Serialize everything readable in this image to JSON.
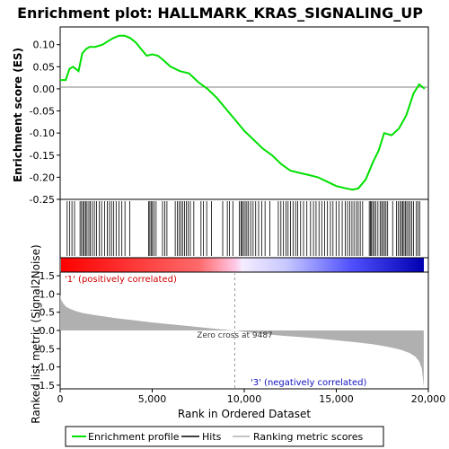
{
  "title": "Enrichment plot: HALLMARK_KRAS_SIGNALING_UP",
  "colors": {
    "es_line": "#00e000",
    "hit_line": "#000000",
    "metric_fill": "#b0b0b0",
    "zero_line": "#808080",
    "pos_label": "#d00000",
    "neg_label": "#1010c0"
  },
  "legend": {
    "items": [
      {
        "label": "Enrichment profile",
        "symbol": "green-line"
      },
      {
        "label": "Hits",
        "symbol": "black-line"
      },
      {
        "label": "Ranking metric scores",
        "symbol": "gray-line"
      }
    ]
  },
  "chart_data": [
    {
      "panel": "enrichment-score",
      "type": "line",
      "ylabel": "Enrichment score (ES)",
      "xlim": [
        0,
        20000
      ],
      "ylim": [
        -0.25,
        0.14
      ],
      "yticks": [
        -0.25,
        -0.2,
        -0.15,
        -0.1,
        -0.05,
        0.0,
        0.05,
        0.1
      ],
      "ytick_labels": [
        "-0.25",
        "-0.20",
        "-0.15",
        "-0.10",
        "-0.05",
        "0.00",
        "0.05",
        "0.10"
      ],
      "grid": false,
      "series": [
        {
          "x": [
            0,
            300,
            500,
            700,
            1000,
            1200,
            1400,
            1600,
            1900,
            2300,
            2600,
            2900,
            3200,
            3500,
            3800,
            4100,
            4400,
            4700,
            5000,
            5300,
            5600,
            6000,
            6500,
            7000,
            7500,
            8000,
            8500,
            9000,
            9500,
            10000,
            10500,
            11000,
            11500,
            12000,
            12500,
            13000,
            13500,
            14000,
            14500,
            15000,
            15500,
            15900,
            16200,
            16600,
            17000,
            17300,
            17600,
            18000,
            18400,
            18800,
            19200,
            19500,
            19800
          ],
          "y": [
            0.02,
            0.02,
            0.045,
            0.05,
            0.04,
            0.08,
            0.09,
            0.095,
            0.095,
            0.1,
            0.108,
            0.115,
            0.12,
            0.12,
            0.115,
            0.105,
            0.09,
            0.075,
            0.078,
            0.075,
            0.065,
            0.05,
            0.04,
            0.035,
            0.015,
            0.0,
            -0.02,
            -0.045,
            -0.07,
            -0.095,
            -0.115,
            -0.135,
            -0.15,
            -0.17,
            -0.185,
            -0.19,
            -0.195,
            -0.2,
            -0.21,
            -0.22,
            -0.225,
            -0.228,
            -0.225,
            -0.205,
            -0.165,
            -0.14,
            -0.1,
            -0.105,
            -0.09,
            -0.06,
            -0.01,
            0.01,
            0.0
          ]
        }
      ]
    },
    {
      "panel": "hits",
      "type": "scatter",
      "description_of_marks": "vertical tick marks at ranks of gene-set members",
      "hit_ranks": [
        380,
        520,
        640,
        780,
        1080,
        1160,
        1240,
        1310,
        1390,
        1460,
        1560,
        1640,
        1750,
        1860,
        1980,
        2130,
        2250,
        2410,
        2560,
        2680,
        2790,
        2910,
        3040,
        3200,
        3350,
        3520,
        3780,
        4800,
        4870,
        4940,
        5010,
        5100,
        5210,
        5560,
        5680,
        5800,
        6250,
        6370,
        6460,
        6560,
        6650,
        6760,
        6850,
        6960,
        7070,
        7260,
        7650,
        7780,
        7960,
        8220,
        8830,
        9080,
        9200,
        9380,
        9730,
        9820,
        9880,
        9960,
        10050,
        10140,
        10230,
        10350,
        10480,
        10620,
        10780,
        10950,
        11130,
        11390,
        11850,
        11990,
        12130,
        12270,
        12380,
        12510,
        12650,
        12790,
        12900,
        13060,
        13220,
        13400,
        13600,
        13760,
        13900,
        14060,
        14210,
        14370,
        14520,
        14680,
        14820,
        14990,
        15150,
        15320,
        15490,
        15610,
        15730,
        15850,
        15960,
        16090,
        16190,
        16300,
        16430,
        16790,
        16850,
        16910,
        16980,
        17060,
        17140,
        17260,
        17380,
        17460,
        17540,
        17620,
        17700,
        17790,
        18060,
        18270,
        18370,
        18460,
        18540,
        18610,
        18680,
        18750,
        18830,
        18920,
        19010,
        19100,
        19190,
        19350,
        19440,
        19530
      ]
    },
    {
      "panel": "ranked-metric",
      "type": "area",
      "xlabel": "Rank in Ordered Dataset",
      "ylabel": "Ranked list metric (Signal2Noise)",
      "xlim": [
        0,
        20000
      ],
      "ylim": [
        -1.6,
        1.6
      ],
      "yticks": [
        -1.5,
        -1.0,
        -0.5,
        0.0,
        0.5,
        1.0,
        1.5
      ],
      "ytick_labels": [
        "-1.5",
        "-1.0",
        "-0.5",
        "0.0",
        "0.5",
        "1.0",
        "1.5"
      ],
      "xticks": [
        0,
        5000,
        10000,
        15000,
        20000
      ],
      "xtick_labels": [
        "0",
        "5,000",
        "10,000",
        "15,000",
        "20,000"
      ],
      "zero_cross": 9487,
      "annotations": {
        "zero_cross": "Zero cross at 9487",
        "positive": "'1' (positively correlated)",
        "negative": "'3' (negatively correlated)"
      },
      "series": [
        {
          "x": [
            0,
            50,
            150,
            300,
            500,
            800,
            1200,
            2000,
            3000,
            4000,
            5000,
            6000,
            7000,
            8000,
            9000,
            9487,
            10000,
            11000,
            12000,
            13000,
            14000,
            15000,
            16000,
            17000,
            17500,
            18000,
            18500,
            19000,
            19300,
            19500,
            19650,
            19750
          ],
          "y": [
            1.0,
            0.85,
            0.75,
            0.66,
            0.6,
            0.54,
            0.48,
            0.41,
            0.34,
            0.28,
            0.22,
            0.17,
            0.12,
            0.07,
            0.02,
            0.0,
            -0.04,
            -0.09,
            -0.14,
            -0.18,
            -0.22,
            -0.27,
            -0.32,
            -0.38,
            -0.42,
            -0.47,
            -0.53,
            -0.62,
            -0.72,
            -0.85,
            -1.05,
            -1.55
          ]
        }
      ]
    }
  ]
}
